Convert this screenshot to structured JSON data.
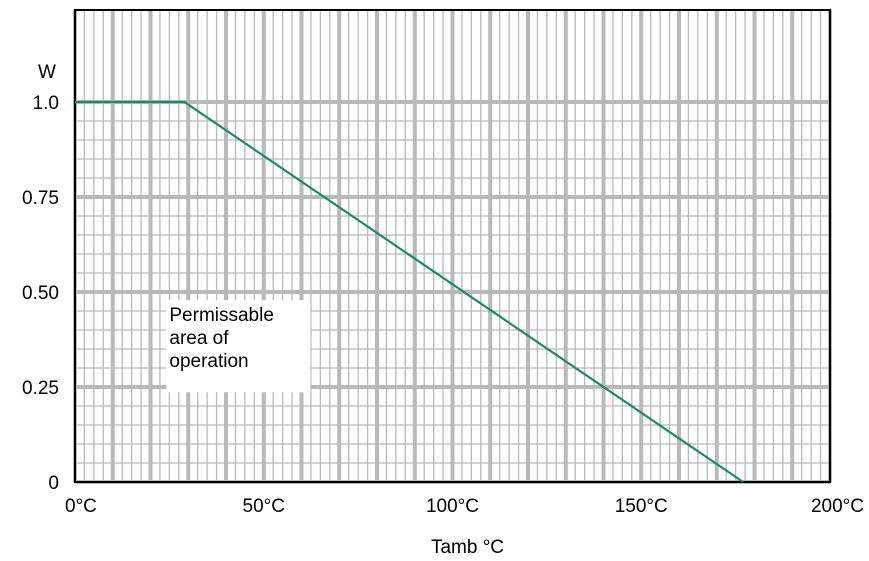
{
  "chart_data": {
    "type": "line",
    "title": "",
    "ylabel": "W",
    "xlabel": "Tamb °C",
    "xlim": [
      0,
      200
    ],
    "ylim": [
      0,
      1.0
    ],
    "x_ticks": [
      0,
      50,
      100,
      150,
      200
    ],
    "x_tick_labels": [
      "0°C",
      "50°C",
      "100°C",
      "150°C",
      "200°C"
    ],
    "y_ticks": [
      0,
      0.25,
      0.5,
      0.75,
      1.0
    ],
    "y_tick_labels": [
      "0",
      "0.25",
      "0.50",
      "0.75",
      "1.0"
    ],
    "grid": true,
    "series": [
      {
        "x": [
          0,
          29,
          177
        ],
        "y": [
          1.0,
          1.0,
          0.0
        ],
        "color": "#1a8a6a"
      }
    ],
    "annotation": {
      "lines": [
        "Permissable",
        "area of",
        "operation"
      ],
      "x": 25,
      "y": 0.46
    },
    "colors": {
      "grid": "#b9b9b9",
      "line": "#1a8a6a",
      "axis": "#000000"
    }
  }
}
